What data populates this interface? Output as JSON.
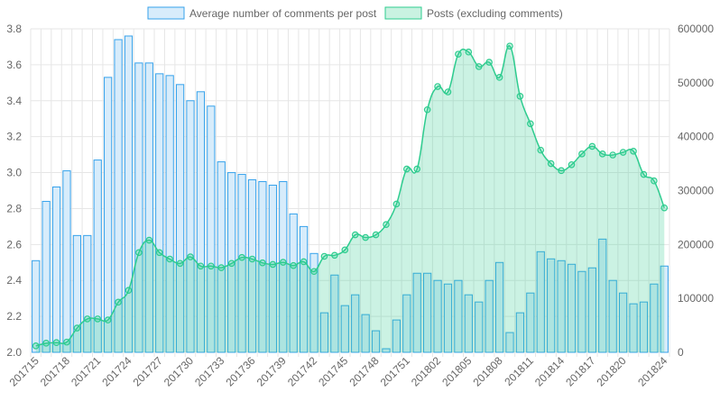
{
  "chart_data": {
    "type": "bar",
    "title": "",
    "categories": [
      "201715",
      "201716",
      "201717",
      "201718",
      "201719",
      "201720",
      "201721",
      "201722",
      "201723",
      "201724",
      "201725",
      "201726",
      "201727",
      "201728",
      "201729",
      "201730",
      "201731",
      "201732",
      "201733",
      "201734",
      "201735",
      "201736",
      "201737",
      "201738",
      "201739",
      "201740",
      "201741",
      "201742",
      "201743",
      "201744",
      "201745",
      "201746",
      "201747",
      "201748",
      "201749",
      "201750",
      "201751",
      "201752",
      "201801",
      "201802",
      "201803",
      "201804",
      "201805",
      "201806",
      "201807",
      "201808",
      "201809",
      "201810",
      "201811",
      "201812",
      "201813",
      "201814",
      "201815",
      "201816",
      "201817",
      "201818",
      "201819",
      "201820",
      "201821",
      "201822",
      "201823",
      "201824"
    ],
    "x_tick_labels": [
      "201715",
      "201718",
      "201721",
      "201724",
      "201727",
      "201730",
      "201733",
      "201736",
      "201739",
      "201742",
      "201745",
      "201748",
      "201751",
      "201802",
      "201805",
      "201808",
      "201811",
      "201814",
      "201817",
      "201820",
      "201824"
    ],
    "series": [
      {
        "name": "Average number of comments per post",
        "type": "bar",
        "axis": "left",
        "color": "#36a2eb",
        "fill": "#d7ecfb",
        "values": [
          2.51,
          2.84,
          2.92,
          3.01,
          2.65,
          2.65,
          3.07,
          3.53,
          3.74,
          3.76,
          3.61,
          3.61,
          3.55,
          3.54,
          3.49,
          3.4,
          3.45,
          3.37,
          3.06,
          3.0,
          2.99,
          2.96,
          2.95,
          2.93,
          2.95,
          2.77,
          2.7,
          2.55,
          2.22,
          2.43,
          2.26,
          2.32,
          2.21,
          2.12,
          2.02,
          2.18,
          2.32,
          2.44,
          2.44,
          2.4,
          2.38,
          2.4,
          2.32,
          2.28,
          2.4,
          2.5,
          2.11,
          2.22,
          2.33,
          2.56,
          2.52,
          2.51,
          2.49,
          2.45,
          2.47,
          2.63,
          2.4,
          2.33,
          2.27,
          2.28,
          2.38,
          2.48
        ]
      },
      {
        "name": "Posts (excluding comments)",
        "type": "line",
        "axis": "right",
        "color": "#2ecc8f",
        "fill": "rgba(46, 204, 143, 0.25)",
        "values": [
          12000,
          17000,
          18000,
          19000,
          45000,
          62000,
          62000,
          60000,
          93000,
          115000,
          185000,
          208000,
          185000,
          173000,
          165000,
          177000,
          160000,
          160000,
          157000,
          165000,
          176000,
          173000,
          166000,
          163000,
          167000,
          161000,
          168000,
          150000,
          178000,
          180000,
          190000,
          218000,
          213000,
          218000,
          237000,
          275000,
          340000,
          340000,
          450000,
          493000,
          483000,
          553000,
          557000,
          530000,
          538000,
          510000,
          568000,
          475000,
          424000,
          375000,
          350000,
          337000,
          348000,
          368000,
          382000,
          368000,
          366000,
          371000,
          373000,
          330000,
          318000,
          268000
        ]
      }
    ],
    "y_left": {
      "min": 2.0,
      "max": 3.8,
      "ticks": [
        "2.0",
        "2.2",
        "2.4",
        "2.6",
        "2.8",
        "3.0",
        "3.2",
        "3.4",
        "3.6",
        "3.8"
      ]
    },
    "y_right": {
      "min": 0,
      "max": 600000,
      "ticks": [
        "0",
        "100000",
        "200000",
        "300000",
        "400000",
        "500000",
        "600000"
      ]
    },
    "grid": true,
    "legend_position": "top-center"
  }
}
